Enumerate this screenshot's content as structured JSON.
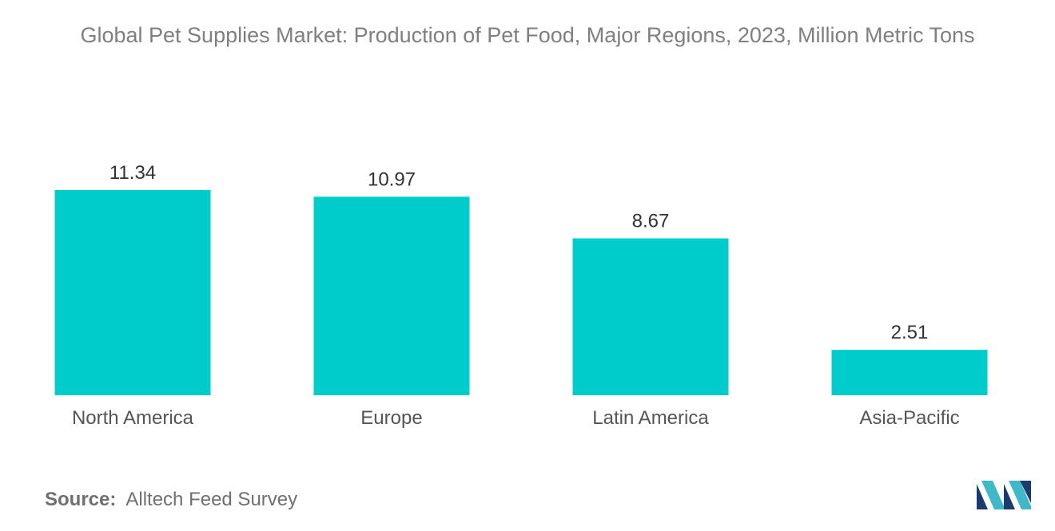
{
  "chart_data": {
    "type": "bar",
    "title": "Global Pet Supplies Market: Production of Pet Food, Major Regions, 2023, Million Metric Tons",
    "categories": [
      "North America",
      "Europe",
      "Latin America",
      "Asia-Pacific"
    ],
    "values": [
      11.34,
      10.97,
      8.67,
      2.51
    ],
    "data_labels": [
      "11.34",
      "10.97",
      "8.67",
      "2.51"
    ],
    "xlabel": "",
    "ylabel": "",
    "ylim": [
      0,
      11.34
    ],
    "grid": false,
    "legend": "none",
    "bar_color": "#00cccc"
  },
  "source": {
    "label": "Source:",
    "text": "Alltech Feed Survey"
  },
  "logo": {
    "icon": "mordor-intelligence-logo-icon",
    "colors": [
      "#1a3b6e",
      "#3fb8c8"
    ]
  }
}
